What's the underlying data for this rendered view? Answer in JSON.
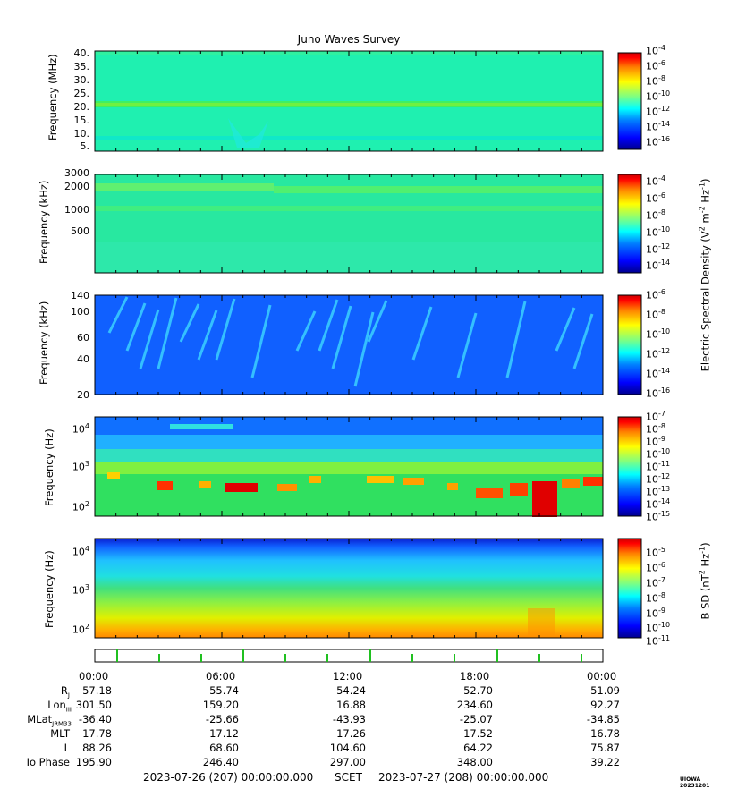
{
  "title": "Juno Waves Survey",
  "colors": {
    "jet": [
      "#00008f",
      "#0000ff",
      "#0080ff",
      "#00ffff",
      "#80ff80",
      "#ffff00",
      "#ff8000",
      "#ff0000",
      "#800000"
    ]
  },
  "panels": [
    {
      "ylabel": "Frequency (MHz)",
      "yticks": [
        "40.",
        "35.",
        "30.",
        "25.",
        "20.",
        "15.",
        "10.",
        "5."
      ],
      "cb_ticks": [
        "-4",
        "-6",
        "-8",
        "-10",
        "-12",
        "-14",
        "-16"
      ],
      "base": "#1ff0b0"
    },
    {
      "ylabel": "Frequency (kHz)",
      "yticks": [
        "3000",
        "2000",
        "1000",
        "500"
      ],
      "cb_ticks": [
        "-4",
        "-6",
        "-8",
        "-10",
        "-12",
        "-14"
      ],
      "base": "#28e8a0"
    },
    {
      "ylabel": "Frequency (kHz)",
      "yticks": [
        "140",
        "100",
        "60",
        "40",
        "20"
      ],
      "cb_ticks": [
        "-6",
        "-8",
        "-10",
        "-12",
        "-14",
        "-16"
      ],
      "base": "#1060ff"
    },
    {
      "ylabel": "Frequency (Hz)",
      "yticks": [
        "10",
        "10",
        "10"
      ],
      "yexp": [
        "4",
        "3",
        "2"
      ],
      "cb_ticks": [
        "-7",
        "-8",
        "-9",
        "-10",
        "-11",
        "-12",
        "-13",
        "-14",
        "-15"
      ],
      "base": "#30e060"
    },
    {
      "ylabel": "Frequency (Hz)",
      "yticks": [
        "10",
        "10",
        "10"
      ],
      "yexp": [
        "4",
        "3",
        "2"
      ],
      "cb_ticks": [
        "-5",
        "-6",
        "-7",
        "-8",
        "-9",
        "-10",
        "-11"
      ],
      "base": "#30e060"
    }
  ],
  "cb_base": "10",
  "cb_label_e": "Electric Spectral Density (V",
  "cb_label_e_mid": " m",
  "cb_label_e_end": " Hz",
  "cb_label_e_close": ")",
  "cb_label_b": "B SD (nT",
  "cb_label_b_mid": " Hz",
  "cb_label_b_close": ")",
  "exp2": "2",
  "expm2": "-2",
  "expm1": "-1",
  "time_labels": [
    "00:00",
    "06:00",
    "12:00",
    "18:00",
    "00:00"
  ],
  "ephemeris": [
    {
      "label": "R",
      "sub": "J",
      "values": [
        "57.18",
        "55.74",
        "54.24",
        "52.70",
        "51.09"
      ]
    },
    {
      "label": "Lon",
      "sub": "III",
      "values": [
        "301.50",
        "159.20",
        "16.88",
        "234.60",
        "92.27"
      ]
    },
    {
      "label": "MLat",
      "sub": "JRM33",
      "values": [
        "-36.40",
        "-25.66",
        "-43.93",
        "-25.07",
        "-34.85"
      ]
    },
    {
      "label": "MLT",
      "sub": "",
      "values": [
        "17.78",
        "17.12",
        "17.26",
        "17.52",
        "16.78"
      ]
    },
    {
      "label": "L",
      "sub": "",
      "values": [
        "88.26",
        "68.60",
        "104.60",
        "64.22",
        "75.87"
      ]
    },
    {
      "label": "Io Phase",
      "sub": "",
      "values": [
        "195.90",
        "246.40",
        "297.00",
        "348.00",
        "39.22"
      ]
    }
  ],
  "footer": {
    "start": "2023-07-26 (207) 00:00:00.000",
    "scet": "SCET",
    "end": "2023-07-27 (208) 00:00:00.000",
    "stamp": "UIOWA 20231201"
  }
}
